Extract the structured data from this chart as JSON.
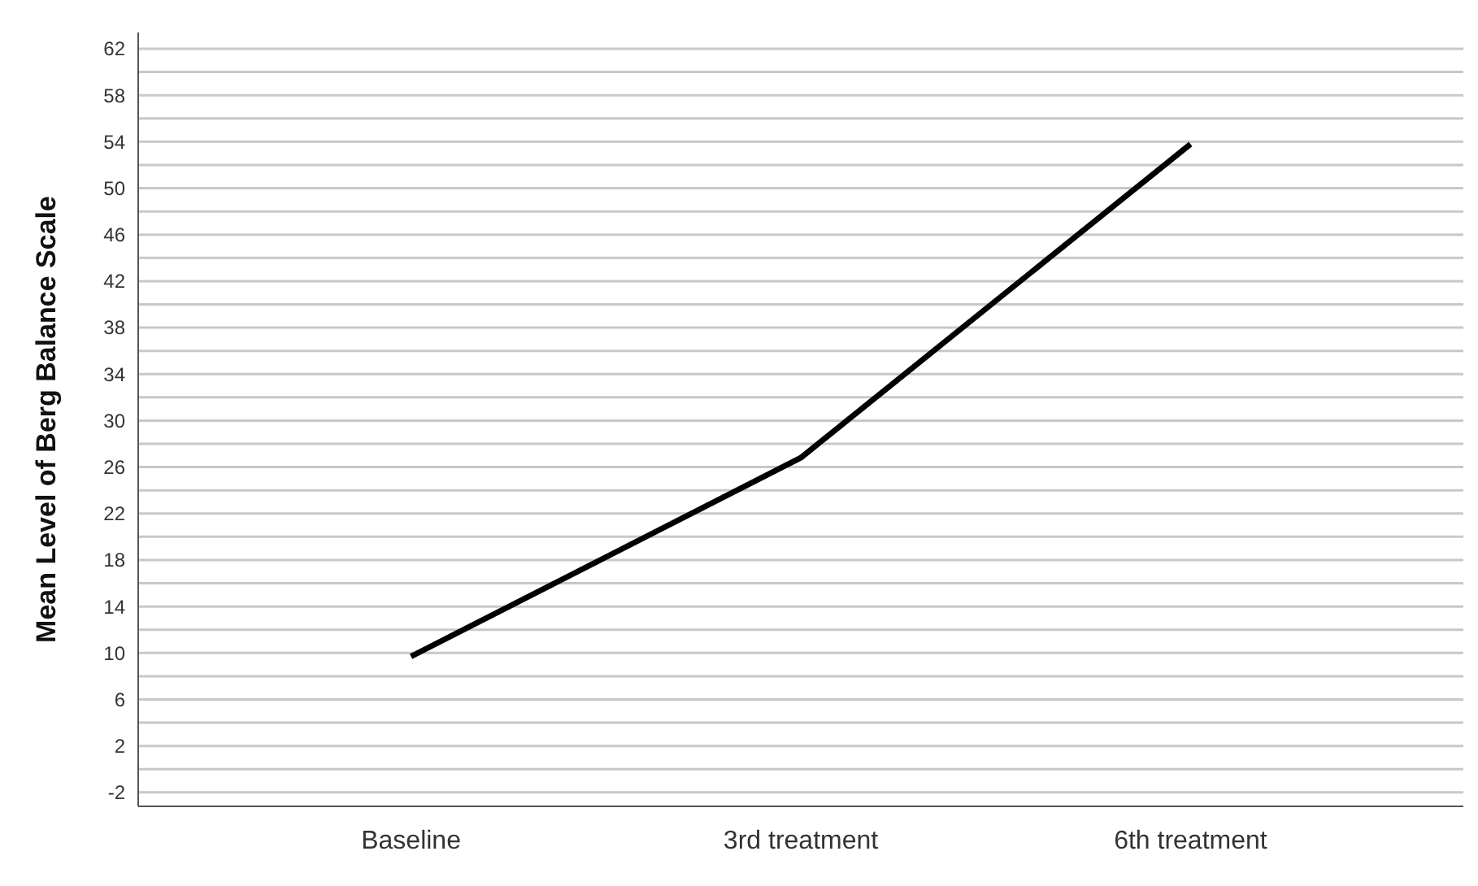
{
  "chart_data": {
    "type": "line",
    "ylabel": "Mean Level of Berg Balance Scale",
    "categories": [
      "Baseline",
      "3rd treatment",
      "6th treatment"
    ],
    "series": [
      {
        "color": "#000000",
        "values": [
          9.7,
          26.8,
          53.8
        ]
      }
    ],
    "ylim": [
      -3.2,
      63.4
    ],
    "yticks": [
      -2,
      {
        "value": 0,
        "label": null
      },
      2,
      {
        "value": 4,
        "label": null
      },
      6,
      {
        "value": 8,
        "label": null
      },
      10,
      {
        "value": 12,
        "label": null
      },
      14,
      {
        "value": 16,
        "label": null
      },
      18,
      {
        "value": 20,
        "label": null
      },
      22,
      {
        "value": 24,
        "label": null
      },
      26,
      {
        "value": 28,
        "label": null
      },
      30,
      {
        "value": 32,
        "label": null
      },
      34,
      {
        "value": 36,
        "label": null
      },
      38,
      {
        "value": 40,
        "label": null
      },
      42,
      {
        "value": 44,
        "label": null
      },
      46,
      {
        "value": 48,
        "label": null
      },
      50,
      {
        "value": 52,
        "label": null
      },
      54,
      {
        "value": 56,
        "label": null
      },
      58,
      {
        "value": 60,
        "label": null
      },
      62
    ],
    "grid": "y",
    "marker": "none",
    "line_style": "solid"
  }
}
